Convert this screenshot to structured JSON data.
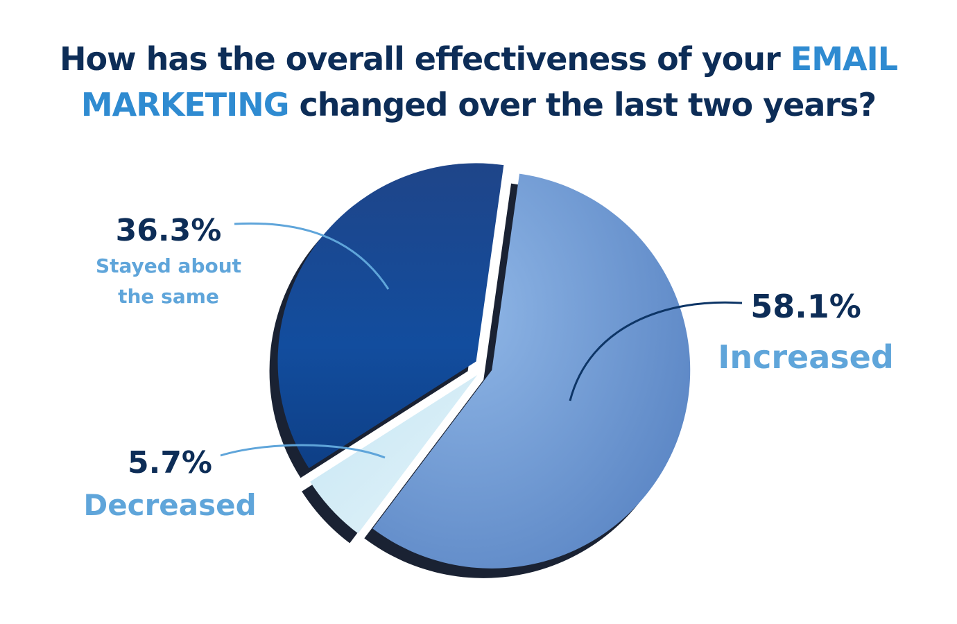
{
  "title": {
    "line1_pre": "How has the overall effectiveness of your ",
    "line1_highlight": "EMAIL",
    "line2_highlight": "MARKETING",
    "line2_post": " changed over the last two years?"
  },
  "colors": {
    "title_dark": "#0d2d57",
    "title_highlight": "#2f8bd1",
    "increased": "#6f9ad3",
    "stayed": "#17499a",
    "decreased": "#cfe9f5",
    "label_category": "#5fa5da"
  },
  "chart_data": {
    "type": "pie",
    "title": "How has the overall effectiveness of your EMAIL MARKETING changed over the last two years?",
    "slices": [
      {
        "label": "Increased",
        "pct_label": "58.1%",
        "value": 58.1
      },
      {
        "label": "Decreased",
        "pct_label": "5.7%",
        "value": 5.7
      },
      {
        "label_line1": "Stayed about",
        "label_line2": "the same",
        "pct_label": "36.3%",
        "value": 36.3
      }
    ]
  }
}
